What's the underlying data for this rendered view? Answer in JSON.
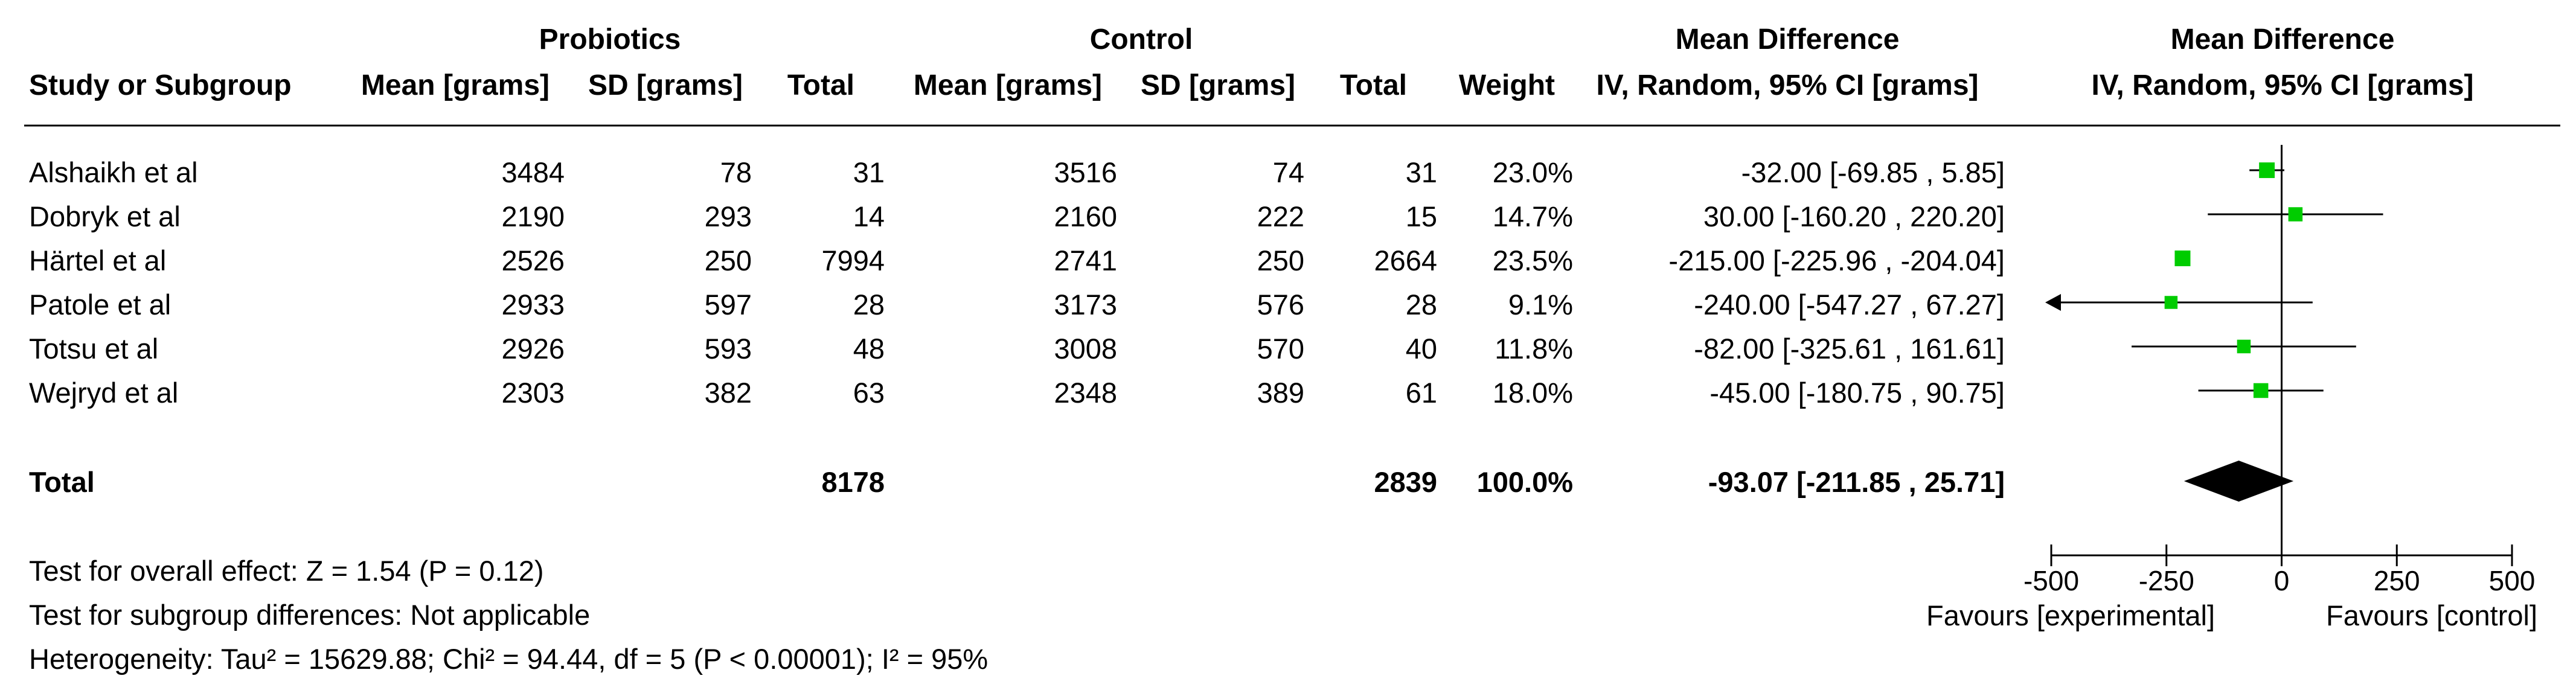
{
  "header": {
    "group_probiotics": "Probiotics",
    "group_control": "Control",
    "group_md_table": "Mean Difference",
    "group_md_plot": "Mean Difference",
    "col_study": "Study or Subgroup",
    "col_p_mean": "Mean [grams]",
    "col_p_sd": "SD [grams]",
    "col_p_total": "Total",
    "col_c_mean": "Mean [grams]",
    "col_c_sd": "SD [grams]",
    "col_c_total": "Total",
    "col_weight": "Weight",
    "col_md_table": "IV, Random, 95% CI [grams]",
    "col_md_plot": "IV, Random, 95% CI [grams]"
  },
  "studies": [
    {
      "name": "Alshaikh et al",
      "p_mean": "3484",
      "p_sd": "78",
      "p_total": "31",
      "c_mean": "3516",
      "c_sd": "74",
      "c_total": "31",
      "weight": "23.0%",
      "ci_text": "-32.00 [-69.85 , 5.85]"
    },
    {
      "name": "Dobryk et al",
      "p_mean": "2190",
      "p_sd": "293",
      "p_total": "14",
      "c_mean": "2160",
      "c_sd": "222",
      "c_total": "15",
      "weight": "14.7%",
      "ci_text": "30.00 [-160.20 , 220.20]"
    },
    {
      "name": "Härtel et al",
      "p_mean": "2526",
      "p_sd": "250",
      "p_total": "7994",
      "c_mean": "2741",
      "c_sd": "250",
      "c_total": "2664",
      "weight": "23.5%",
      "ci_text": "-215.00 [-225.96 , -204.04]"
    },
    {
      "name": "Patole et al",
      "p_mean": "2933",
      "p_sd": "597",
      "p_total": "28",
      "c_mean": "3173",
      "c_sd": "576",
      "c_total": "28",
      "weight": "9.1%",
      "ci_text": "-240.00 [-547.27 , 67.27]"
    },
    {
      "name": "Totsu et al",
      "p_mean": "2926",
      "p_sd": "593",
      "p_total": "48",
      "c_mean": "3008",
      "c_sd": "570",
      "c_total": "40",
      "weight": "11.8%",
      "ci_text": "-82.00 [-325.61 , 161.61]"
    },
    {
      "name": "Wejryd et al",
      "p_mean": "2303",
      "p_sd": "382",
      "p_total": "63",
      "c_mean": "2348",
      "c_sd": "389",
      "c_total": "61",
      "weight": "18.0%",
      "ci_text": "-45.00 [-180.75 , 90.75]"
    }
  ],
  "total": {
    "label": "Total",
    "p_total": "8178",
    "c_total": "2839",
    "weight": "100.0%",
    "ci_text": "-93.07 [-211.85 , 25.71]"
  },
  "footer": {
    "overall_effect": "Test for overall effect: Z = 1.54 (P = 0.12)",
    "subgroup_diff": "Test for subgroup differences: Not applicable",
    "heterogeneity": "Heterogeneity: Tau² = 15629.88; Chi² = 94.44, df = 5 (P < 0.00001); I² = 95%"
  },
  "chart_data": {
    "type": "forest",
    "marker_color": "#00cc00",
    "pooled_color": "#000000",
    "xlim": [
      -500,
      500
    ],
    "ticks": [
      -500,
      -250,
      0,
      250,
      500
    ],
    "tick_labels": [
      "-500",
      "-250",
      "0",
      "250",
      "500"
    ],
    "favours_left": "Favours [experimental]",
    "favours_right": "Favours [control]",
    "points": [
      {
        "study": "Alshaikh et al",
        "md": -32.0,
        "lo": -69.85,
        "hi": 5.85,
        "weight": 23.0
      },
      {
        "study": "Dobryk et al",
        "md": 30.0,
        "lo": -160.2,
        "hi": 220.2,
        "weight": 14.7
      },
      {
        "study": "Härtel et al",
        "md": -215.0,
        "lo": -225.96,
        "hi": -204.04,
        "weight": 23.5
      },
      {
        "study": "Patole et al",
        "md": -240.0,
        "lo": -547.27,
        "hi": 67.27,
        "weight": 9.1
      },
      {
        "study": "Totsu et al",
        "md": -82.0,
        "lo": -325.61,
        "hi": 161.61,
        "weight": 11.8
      },
      {
        "study": "Wejryd et al",
        "md": -45.0,
        "lo": -180.75,
        "hi": 90.75,
        "weight": 18.0
      }
    ],
    "pooled": {
      "md": -93.07,
      "lo": -211.85,
      "hi": 25.71
    }
  }
}
